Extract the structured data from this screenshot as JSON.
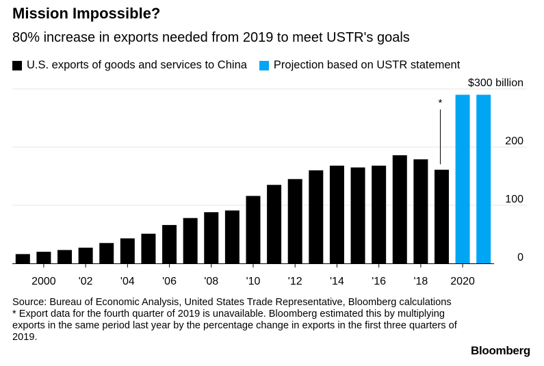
{
  "title": "Mission Impossible?",
  "subtitle": "80% increase in exports needed from 2019 to meet USTR's goals",
  "legend": [
    {
      "label": "U.S. exports of goods and services to China",
      "color": "#000000"
    },
    {
      "label": "Projection based on USTR statement",
      "color": "#00a6f4"
    }
  ],
  "source": "Source: Bureau of Economic Analysis, United States Trade Representative, Bloomberg calculations",
  "footnote": "* Export data for the fourth quarter of 2019 is unavailable. Bloomberg estimated this by multiplying exports in the same period last year by the percentage change in exports in the first three quarters of 2019.",
  "brand": "Bloomberg",
  "chart_data": {
    "type": "bar",
    "title": "Mission Impossible?",
    "ylim": [
      0,
      300
    ],
    "y_ticks": [
      {
        "value": 0,
        "label": "0"
      },
      {
        "value": 100,
        "label": "100"
      },
      {
        "value": 200,
        "label": "200"
      },
      {
        "value": 300,
        "label": "$300 billion"
      }
    ],
    "x_ticks": [
      {
        "year": 2000,
        "label": "2000"
      },
      {
        "year": 2002,
        "label": "'02"
      },
      {
        "year": 2004,
        "label": "'04"
      },
      {
        "year": 2006,
        "label": "'06"
      },
      {
        "year": 2008,
        "label": "'08"
      },
      {
        "year": 2010,
        "label": "'10"
      },
      {
        "year": 2012,
        "label": "'12"
      },
      {
        "year": 2014,
        "label": "'14"
      },
      {
        "year": 2016,
        "label": "'16"
      },
      {
        "year": 2018,
        "label": "'18"
      },
      {
        "year": 2020,
        "label": "2020"
      }
    ],
    "annotation": {
      "year": 2019,
      "text": "*"
    },
    "series": [
      {
        "name": "U.S. exports of goods and services to China",
        "color": "#000000",
        "x": [
          1999,
          2000,
          2001,
          2002,
          2003,
          2004,
          2005,
          2006,
          2007,
          2008,
          2009,
          2010,
          2011,
          2012,
          2013,
          2014,
          2015,
          2016,
          2017,
          2018,
          2019
        ],
        "values": [
          16,
          20,
          23,
          27,
          35,
          43,
          51,
          66,
          78,
          88,
          91,
          116,
          135,
          145,
          160,
          168,
          165,
          168,
          186,
          179,
          161
        ]
      },
      {
        "name": "Projection based on USTR statement",
        "color": "#00a6f4",
        "x": [
          2020,
          2021
        ],
        "values": [
          290,
          290
        ]
      }
    ]
  }
}
